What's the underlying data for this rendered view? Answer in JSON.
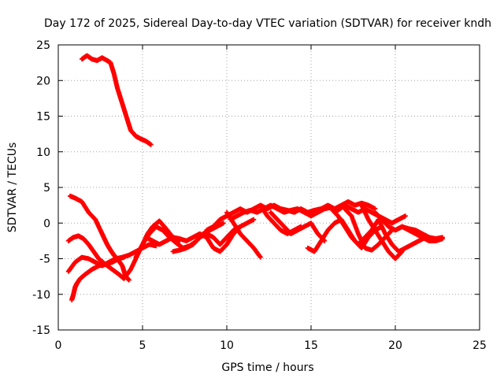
{
  "chart_data": {
    "type": "scatter",
    "title": "Day 172 of 2025, Sidereal Day-to-day VTEC variation (SDTVAR) for receiver kndh",
    "xlabel": "GPS time / hours",
    "ylabel": "SDTVAR / TECUs",
    "xlim": [
      0,
      25
    ],
    "ylim": [
      -15,
      25
    ],
    "xticks": [
      0,
      5,
      10,
      15,
      20,
      25
    ],
    "yticks": [
      -15,
      -10,
      -5,
      0,
      5,
      10,
      15,
      20,
      25
    ],
    "xtick_labels": [
      "0",
      "5",
      "10",
      "15",
      "20",
      "25"
    ],
    "ytick_labels": [
      "-15",
      "-10",
      "-5",
      "0",
      "5",
      "10",
      "15",
      "20",
      "25"
    ],
    "grid": true,
    "marker": "plus",
    "color": "#ff0000",
    "series": [
      {
        "name": "track-1",
        "x": [
          1.4,
          1.7,
          2.0,
          2.3,
          2.6,
          2.9,
          3.1,
          3.3,
          3.5,
          3.7,
          3.9,
          4.1,
          4.3,
          4.6,
          4.9,
          5.2,
          5.5
        ],
        "y": [
          23.0,
          23.5,
          23.0,
          22.8,
          23.2,
          22.8,
          22.5,
          21.0,
          19.0,
          17.5,
          16.0,
          14.5,
          13.0,
          12.2,
          11.8,
          11.5,
          11.0
        ]
      },
      {
        "name": "track-2",
        "x": [
          0.7,
          1.0,
          1.4,
          1.8,
          2.2,
          2.5,
          2.7,
          2.9,
          3.1,
          3.3,
          3.5,
          3.8,
          4.0,
          4.2
        ],
        "y": [
          3.8,
          3.5,
          3.0,
          1.5,
          0.5,
          -1.0,
          -2.0,
          -3.0,
          -3.8,
          -4.5,
          -5.0,
          -6.0,
          -7.5,
          -8.0
        ]
      },
      {
        "name": "track-3",
        "x": [
          0.8,
          0.9,
          1.0,
          1.1,
          1.3,
          1.6,
          2.0,
          2.4,
          2.8,
          3.2,
          3.6,
          3.9
        ],
        "y": [
          -10.8,
          -10.0,
          -9.0,
          -8.5,
          -7.8,
          -7.2,
          -6.5,
          -6.0,
          -5.8,
          -5.5,
          -5.0,
          -4.8
        ]
      },
      {
        "name": "track-4",
        "x": [
          0.6,
          1.0,
          1.4,
          1.8,
          2.2,
          2.6,
          3.0,
          3.4,
          3.8,
          4.2,
          4.6,
          5.0,
          5.4,
          5.8
        ],
        "y": [
          -6.8,
          -5.5,
          -4.8,
          -5.0,
          -5.5,
          -6.0,
          -5.5,
          -5.0,
          -4.8,
          -4.5,
          -4.0,
          -3.5,
          -3.0,
          -3.2
        ]
      },
      {
        "name": "track-5",
        "x": [
          0.6,
          0.9,
          1.2,
          1.5,
          1.8,
          2.1,
          2.4,
          2.8,
          3.2,
          3.6,
          3.9,
          4.3,
          4.7,
          5.0,
          5.3,
          5.6,
          6.0,
          6.4,
          6.8,
          7.2
        ],
        "y": [
          -2.5,
          -2.0,
          -1.8,
          -2.2,
          -3.0,
          -4.0,
          -5.0,
          -5.8,
          -6.5,
          -7.2,
          -7.8,
          -6.5,
          -4.5,
          -3.0,
          -1.5,
          -0.5,
          0.3,
          -0.8,
          -2.0,
          -2.5
        ]
      },
      {
        "name": "track-6",
        "x": [
          4.6,
          5.0,
          5.4,
          5.8,
          6.2,
          6.6,
          7.0,
          7.4,
          7.8,
          8.2,
          8.6,
          9.0,
          9.4,
          9.8
        ],
        "y": [
          -4.8,
          -3.0,
          -1.5,
          -0.5,
          -1.0,
          -2.0,
          -2.8,
          -3.5,
          -3.2,
          -2.5,
          -1.5,
          -1.0,
          -0.5,
          0.0
        ]
      },
      {
        "name": "track-7",
        "x": [
          5.2,
          5.6,
          6.0,
          6.4,
          6.8,
          7.2,
          7.6,
          8.0,
          8.4,
          8.8,
          9.2,
          9.6,
          10.0,
          10.4,
          10.8
        ],
        "y": [
          -2.0,
          -2.5,
          -3.0,
          -2.5,
          -2.0,
          -2.2,
          -2.5,
          -2.0,
          -1.5,
          -2.0,
          -3.5,
          -4.0,
          -3.0,
          -1.5,
          -0.5
        ]
      },
      {
        "name": "track-8",
        "x": [
          6.8,
          7.2,
          7.6,
          8.0,
          8.4,
          8.8,
          9.2,
          9.6,
          10.0,
          10.4,
          10.8,
          11.2,
          11.6
        ],
        "y": [
          -4.0,
          -3.8,
          -3.5,
          -3.0,
          -2.0,
          -1.5,
          -2.0,
          -3.0,
          -2.0,
          -1.0,
          -0.5,
          0.0,
          0.5
        ]
      },
      {
        "name": "track-9",
        "x": [
          8.8,
          9.2,
          9.6,
          10.0,
          10.4,
          10.8,
          11.2,
          11.6,
          12.0,
          12.4,
          12.8,
          13.2,
          13.6,
          14.0,
          14.4,
          14.8,
          15.2,
          15.6,
          16.0,
          16.4,
          16.8,
          17.2,
          17.6,
          18.0,
          18.4,
          18.8
        ],
        "y": [
          -1.0,
          -0.5,
          0.5,
          1.0,
          1.5,
          2.0,
          1.5,
          2.0,
          2.5,
          2.0,
          2.5,
          2.0,
          1.8,
          1.5,
          2.0,
          1.5,
          1.8,
          2.0,
          2.5,
          2.0,
          2.5,
          3.0,
          2.5,
          2.8,
          2.5,
          2.0
        ]
      },
      {
        "name": "track-10",
        "x": [
          10.2,
          10.6,
          11.0,
          11.4,
          11.8,
          12.2,
          12.6,
          13.0,
          13.4,
          13.8,
          14.2,
          14.6,
          15.0,
          15.4,
          15.8,
          16.2,
          16.6,
          17.0,
          17.4,
          17.8,
          18.2,
          18.6,
          19.0,
          19.4,
          19.8,
          20.2,
          20.6
        ],
        "y": [
          0.5,
          1.0,
          1.5,
          1.8,
          1.5,
          2.0,
          2.5,
          2.0,
          1.5,
          1.8,
          2.0,
          1.5,
          1.0,
          1.5,
          2.0,
          2.2,
          1.8,
          2.5,
          2.0,
          1.5,
          2.0,
          1.5,
          1.0,
          0.5,
          0.0,
          0.5,
          1.0
        ]
      },
      {
        "name": "track-11",
        "x": [
          10.0,
          10.4,
          10.8,
          11.2,
          11.6,
          12.0
        ],
        "y": [
          1.5,
          0.0,
          -1.5,
          -2.5,
          -3.5,
          -4.8
        ]
      },
      {
        "name": "track-12",
        "x": [
          12.0,
          12.4,
          12.8,
          13.2,
          13.6,
          14.0,
          14.4
        ],
        "y": [
          2.5,
          1.0,
          0.0,
          -1.0,
          -1.5,
          -1.0,
          -0.5
        ]
      },
      {
        "name": "track-13",
        "x": [
          12.6,
          13.0,
          13.4,
          13.8,
          14.2,
          14.6,
          15.0,
          15.4,
          15.8
        ],
        "y": [
          1.5,
          0.5,
          -0.5,
          -1.5,
          -1.0,
          -0.5,
          0.0,
          -1.5,
          -2.5
        ]
      },
      {
        "name": "track-14",
        "x": [
          14.8,
          15.2,
          15.6,
          16.0,
          16.4,
          16.8,
          17.2,
          17.6,
          18.0,
          18.4,
          18.8,
          19.2
        ],
        "y": [
          -3.5,
          -4.0,
          -2.5,
          -1.0,
          0.0,
          0.5,
          -1.0,
          -2.5,
          -3.5,
          -2.0,
          -1.0,
          -0.5
        ]
      },
      {
        "name": "track-15",
        "x": [
          16.2,
          16.6,
          17.0,
          17.4,
          17.8,
          18.2,
          18.6,
          19.0,
          19.4,
          19.8,
          20.2,
          20.6,
          21.0,
          21.4,
          21.8
        ],
        "y": [
          2.0,
          1.0,
          -0.5,
          -2.0,
          -3.0,
          -2.0,
          -1.0,
          0.5,
          -1.5,
          -3.0,
          -4.0,
          -3.5,
          -3.0,
          -2.5,
          -2.0
        ]
      },
      {
        "name": "track-16",
        "x": [
          17.0,
          17.4,
          17.8,
          18.2,
          18.6,
          19.0,
          19.4,
          19.8
        ],
        "y": [
          2.0,
          1.0,
          -1.5,
          -3.5,
          -3.8,
          -3.0,
          -2.0,
          -1.0
        ]
      },
      {
        "name": "track-17",
        "x": [
          18.0,
          18.4,
          18.8,
          19.2,
          19.6,
          20.0,
          20.4
        ],
        "y": [
          2.5,
          0.5,
          -1.0,
          -2.5,
          -4.0,
          -5.0,
          -4.0
        ]
      },
      {
        "name": "track-18",
        "x": [
          18.8,
          19.2,
          19.6,
          20.0,
          20.4,
          20.8,
          21.2,
          21.6,
          22.0,
          22.4,
          22.8
        ],
        "y": [
          1.5,
          0.5,
          -0.5,
          -1.0,
          -0.5,
          -0.8,
          -1.0,
          -1.5,
          -2.0,
          -2.2,
          -2.0
        ]
      },
      {
        "name": "track-19",
        "x": [
          20.0,
          20.4,
          20.8,
          21.2,
          21.6,
          22.0,
          22.4,
          22.8
        ],
        "y": [
          -1.0,
          -0.5,
          -1.0,
          -1.5,
          -2.0,
          -2.5,
          -2.5,
          -2.2
        ]
      }
    ]
  }
}
